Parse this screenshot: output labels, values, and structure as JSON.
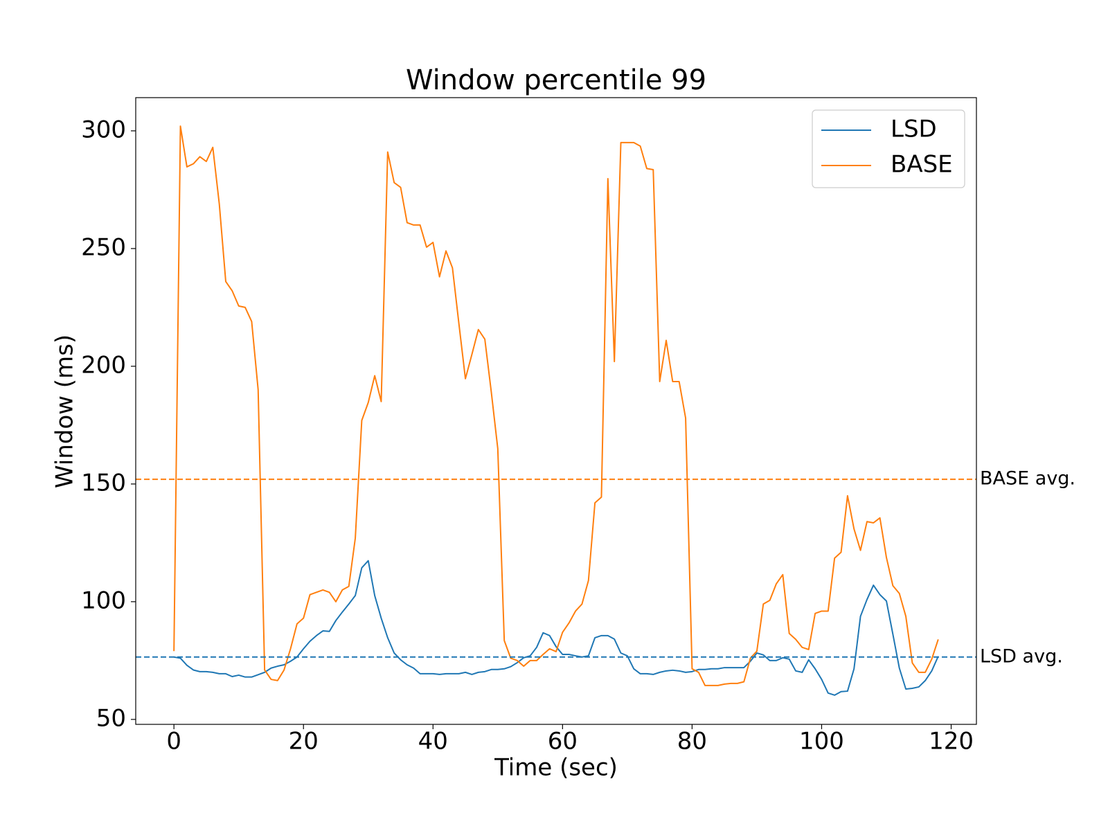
{
  "chart_data": {
    "type": "line",
    "title": "Window percentile 99",
    "x_label": "Time (sec)",
    "y_label": "Window (ms)",
    "x": [
      0,
      1,
      2,
      3,
      4,
      5,
      6,
      7,
      8,
      9,
      10,
      11,
      12,
      13,
      14,
      15,
      16,
      17,
      18,
      19,
      20,
      21,
      22,
      23,
      24,
      25,
      26,
      27,
      28,
      29,
      30,
      31,
      32,
      33,
      34,
      35,
      36,
      37,
      38,
      39,
      40,
      41,
      42,
      43,
      44,
      45,
      46,
      47,
      48,
      49,
      50,
      51,
      52,
      53,
      54,
      55,
      56,
      57,
      58,
      59,
      60,
      61,
      62,
      63,
      64,
      65,
      66,
      67,
      68,
      69,
      70,
      71,
      72,
      73,
      74,
      75,
      76,
      77,
      78,
      79,
      80,
      81,
      82,
      83,
      84,
      85,
      86,
      87,
      88,
      89,
      90,
      91,
      92,
      93,
      94,
      95,
      96,
      97,
      98,
      99,
      100,
      101,
      102,
      103,
      104,
      105,
      106,
      107,
      108,
      109,
      110,
      111,
      112,
      113,
      114,
      115,
      116,
      117,
      118
    ],
    "series": [
      {
        "name": "LSD",
        "color": "#1f77b4",
        "values": [
          76.5,
          76,
          73,
          71,
          70.3,
          70.3,
          70,
          69.4,
          69.4,
          68.2,
          68.8,
          68,
          68,
          69,
          70,
          71.8,
          72.6,
          73.2,
          74.7,
          76.5,
          80,
          83.2,
          85.6,
          87.6,
          87.4,
          92,
          95.6,
          99,
          102.6,
          114.4,
          117.4,
          102.6,
          93,
          84.7,
          78.2,
          75.3,
          73.2,
          71.8,
          69.4,
          69.4,
          69.4,
          69.1,
          69.4,
          69.4,
          69.4,
          70,
          69.1,
          70,
          70.3,
          71.2,
          71.2,
          71.5,
          72.4,
          74.1,
          76.2,
          77,
          80.6,
          86.8,
          85.6,
          80.9,
          77.6,
          77.6,
          77,
          76.5,
          77,
          84.7,
          85.6,
          85.6,
          84.1,
          78.2,
          77,
          71.5,
          69.4,
          69.4,
          69.1,
          70,
          70.6,
          70.9,
          70.6,
          70,
          70.3,
          71.2,
          71.2,
          71.5,
          71.5,
          72,
          72,
          72,
          72,
          74.7,
          78.2,
          77.4,
          75,
          75,
          76.2,
          75.6,
          70.6,
          70,
          75.3,
          71.5,
          67,
          61.2,
          60.3,
          61.8,
          62,
          71.5,
          93.8,
          100.9,
          107,
          103,
          100.3,
          86.2,
          71.8,
          62.9,
          63.2,
          63.8,
          66.5,
          70.6,
          76.8
        ]
      },
      {
        "name": "BASE",
        "color": "#ff7f0e",
        "values": [
          79,
          302,
          284.7,
          286,
          289,
          287,
          293,
          269,
          236,
          232,
          225.6,
          225,
          219,
          190,
          71,
          67,
          66.5,
          71,
          80,
          90.6,
          93,
          103,
          104,
          105,
          104,
          100,
          105,
          106.5,
          127,
          177,
          184.6,
          196,
          185,
          291,
          278,
          276,
          261,
          260,
          260,
          250.6,
          252.6,
          238,
          249,
          241.8,
          218,
          194.7,
          205,
          215.6,
          211.5,
          189,
          165,
          83.5,
          76,
          75,
          72.6,
          75,
          75,
          77.6,
          80,
          78.8,
          87,
          91,
          96,
          99,
          109,
          142,
          144.4,
          279.7,
          202,
          295,
          295,
          295,
          293.5,
          284,
          283.5,
          193.5,
          211,
          193.5,
          193.5,
          178,
          71.5,
          70,
          64.4,
          64.4,
          64.4,
          65,
          65.3,
          65.3,
          66,
          76,
          79,
          99,
          100.6,
          107.6,
          111.5,
          86.5,
          84,
          80.6,
          79.7,
          95,
          96,
          96,
          118.5,
          121,
          145,
          130.9,
          121.8,
          134,
          133.5,
          135.6,
          118.8,
          106.8,
          103.5,
          93.8,
          74,
          70,
          70,
          75.6,
          84
        ]
      }
    ],
    "reference_lines": [
      {
        "label": "BASE avg.",
        "value": 152,
        "color": "#ff7f0e"
      },
      {
        "label": "LSD avg.",
        "value": 76.5,
        "color": "#1f77b4"
      }
    ],
    "xlim": [
      -5.9,
      123.9
    ],
    "ylim": [
      47.9,
      314.1
    ],
    "xticks": [
      0,
      20,
      40,
      60,
      80,
      100,
      120
    ],
    "yticks": [
      50,
      100,
      150,
      200,
      250,
      300
    ],
    "grid": false,
    "legend": "upper right"
  }
}
